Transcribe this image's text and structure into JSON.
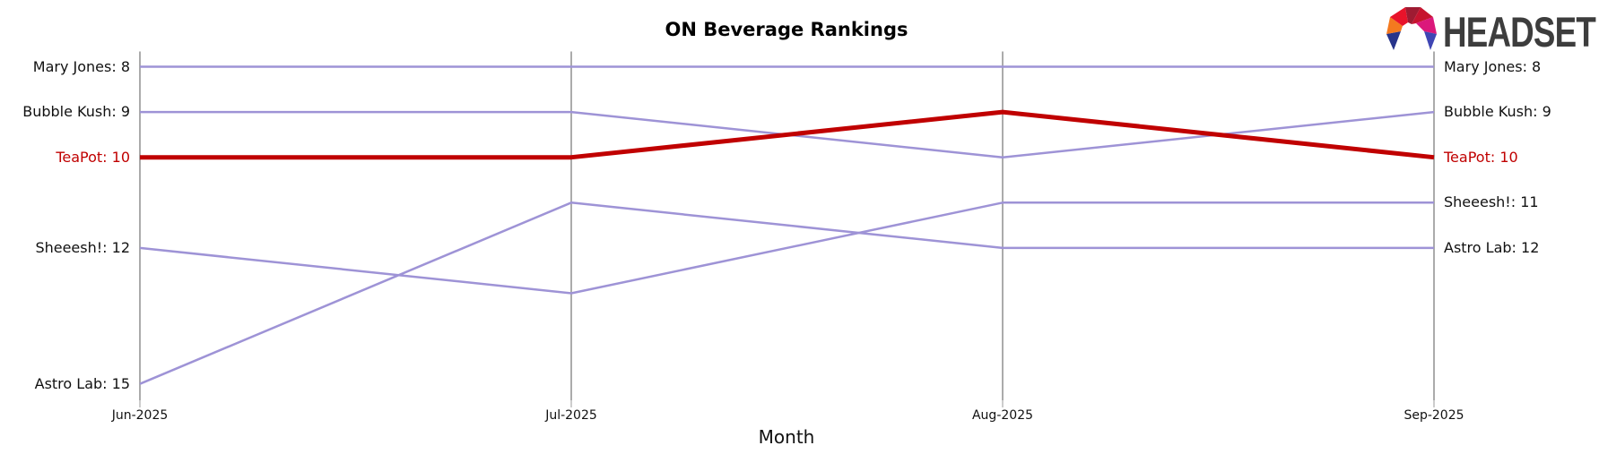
{
  "title": "ON Beverage Rankings",
  "x_axis_label": "Month",
  "brand": {
    "name": "HEADSET"
  },
  "colors": {
    "line_default": "#9e93d6",
    "line_highlight": "#c00000",
    "gridline": "#ababab",
    "label_text": "#111111",
    "highlight_label_text": "#c00000",
    "logo_text": "#3d3d3d"
  },
  "chart_data": {
    "type": "line",
    "subtype": "bump_rank",
    "title": "ON Beverage Rankings",
    "xlabel": "Month",
    "ylabel": "",
    "x": [
      "Jun-2025",
      "Jul-2025",
      "Aug-2025",
      "Sep-2025"
    ],
    "y_meaning": "rank per month, lower number = better rank, y-axis inverted, no y tick marks shown",
    "y_rank_range": [
      8,
      15
    ],
    "grid": "vertical gridline at each month",
    "legend_position": "none (series labeled at both line ends)",
    "series": [
      {
        "name": "Mary Jones",
        "ranks": [
          8,
          8,
          8,
          8
        ],
        "highlight": false
      },
      {
        "name": "Bubble Kush",
        "ranks": [
          9,
          9,
          10,
          9
        ],
        "highlight": false
      },
      {
        "name": "TeaPot",
        "ranks": [
          10,
          10,
          9,
          10
        ],
        "highlight": true
      },
      {
        "name": "Sheeesh!",
        "ranks": [
          12,
          13,
          11,
          11
        ],
        "highlight": false
      },
      {
        "name": "Astro Lab",
        "ranks": [
          15,
          11,
          12,
          12
        ],
        "highlight": false
      }
    ],
    "left_labels": [
      "Mary Jones: 8",
      "Bubble Kush: 9",
      "TeaPot: 10",
      "Sheeesh!: 12",
      "Astro Lab: 15"
    ],
    "right_labels": [
      "Mary Jones: 8",
      "Bubble Kush: 9",
      "TeaPot: 10",
      "Sheeesh!: 11",
      "Astro Lab: 12"
    ]
  }
}
